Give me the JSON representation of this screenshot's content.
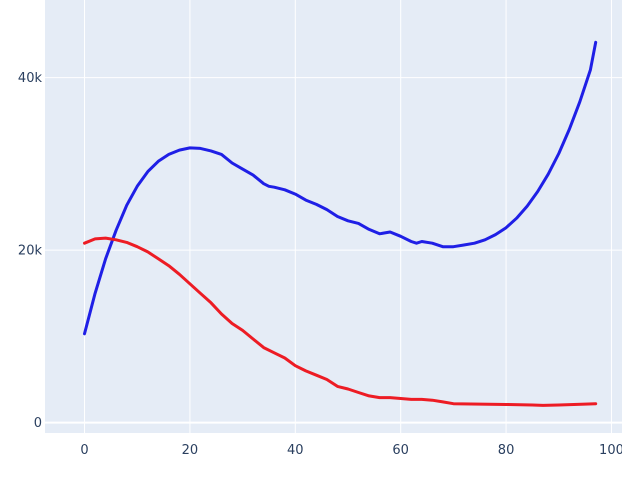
{
  "chart_data": {
    "type": "line",
    "title": "",
    "xlabel": "",
    "ylabel": "",
    "xlim": [
      -7.5,
      102
    ],
    "ylim": [
      -1200,
      49000
    ],
    "grid": true,
    "legend": "none",
    "plot_background": "#e5ecf6",
    "grid_color": "#ffffff",
    "x_ticks": [
      0,
      20,
      40,
      60,
      80,
      100
    ],
    "x_tick_labels": [
      "0",
      "20",
      "40",
      "60",
      "80",
      "100"
    ],
    "y_ticks": [
      0,
      20000,
      40000
    ],
    "y_tick_labels": [
      "0",
      "20k",
      "40k"
    ],
    "series": [
      {
        "color": "#1f1fe6",
        "x": [
          0,
          2,
          4,
          6,
          8,
          10,
          12,
          14,
          16,
          18,
          20,
          22,
          24,
          26,
          28,
          30,
          32,
          34,
          35,
          36,
          38,
          40,
          42,
          44,
          46,
          48,
          50,
          52,
          54,
          56,
          57,
          58,
          60,
          62,
          63,
          64,
          66,
          68,
          70,
          72,
          74,
          76,
          78,
          80,
          82,
          84,
          86,
          88,
          90,
          92,
          94,
          96,
          97
        ],
        "values": [
          10300,
          15000,
          19000,
          22300,
          25200,
          27400,
          29100,
          30300,
          31100,
          31600,
          31850,
          31800,
          31500,
          31100,
          30100,
          29400,
          28700,
          27700,
          27400,
          27300,
          27000,
          26500,
          25800,
          25300,
          24700,
          23900,
          23400,
          23100,
          22400,
          21900,
          22000,
          22100,
          21600,
          21000,
          20800,
          21000,
          20800,
          20400,
          20400,
          20600,
          20800,
          21200,
          21800,
          22600,
          23700,
          25100,
          26800,
          28800,
          31200,
          34000,
          37200,
          40900,
          44100
        ]
      },
      {
        "color": "#ed1c24",
        "x": [
          0,
          2,
          4,
          6,
          8,
          10,
          12,
          14,
          16,
          18,
          20,
          22,
          24,
          26,
          28,
          30,
          32,
          34,
          36,
          38,
          40,
          42,
          44,
          46,
          48,
          50,
          52,
          54,
          56,
          58,
          60,
          62,
          64,
          66,
          68,
          70,
          75,
          80,
          85,
          87,
          90,
          95,
          97
        ],
        "values": [
          20800,
          21300,
          21400,
          21200,
          20900,
          20400,
          19800,
          19000,
          18200,
          17200,
          16100,
          15000,
          13900,
          12600,
          11500,
          10700,
          9700,
          8700,
          8100,
          7500,
          6600,
          6000,
          5500,
          5000,
          4200,
          3900,
          3500,
          3100,
          2900,
          2900,
          2800,
          2700,
          2700,
          2600,
          2400,
          2200,
          2150,
          2100,
          2050,
          2000,
          2050,
          2150,
          2200
        ]
      }
    ]
  }
}
